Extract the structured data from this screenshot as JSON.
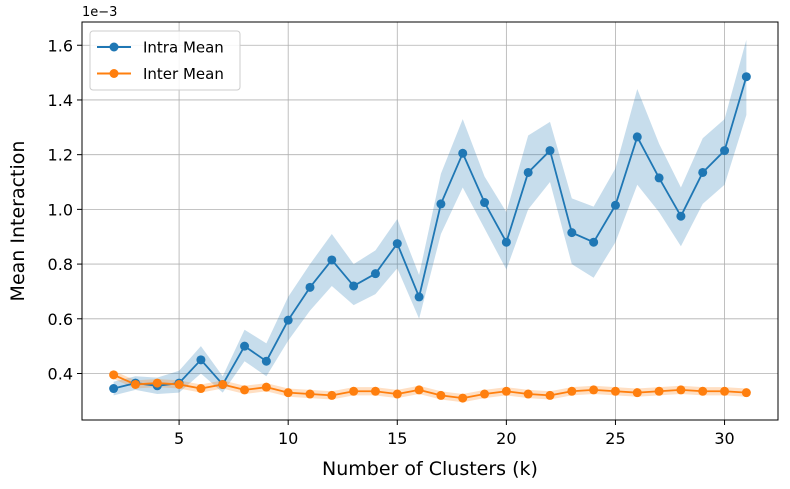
{
  "chart_data": {
    "type": "line",
    "title": "",
    "xlabel": "Number of Clusters (k)",
    "ylabel": "Mean Interaction",
    "y_offset_label": "1e−3",
    "x": [
      2,
      3,
      4,
      5,
      6,
      7,
      8,
      9,
      10,
      11,
      12,
      13,
      14,
      15,
      16,
      17,
      18,
      19,
      20,
      21,
      22,
      23,
      24,
      25,
      26,
      27,
      28,
      29,
      30,
      31
    ],
    "xlim": [
      0.55,
      32.45
    ],
    "ylim": [
      0.23,
      1.685
    ],
    "xticks": [
      5,
      10,
      15,
      20,
      25,
      30
    ],
    "xtick_labels": [
      "5",
      "10",
      "15",
      "20",
      "25",
      "30"
    ],
    "yticks": [
      0.4,
      0.6,
      0.8,
      1.0,
      1.2,
      1.4,
      1.6
    ],
    "ytick_labels": [
      "0.4",
      "0.6",
      "0.8",
      "1.0",
      "1.2",
      "1.4",
      "1.6"
    ],
    "grid": true,
    "legend_position": "top-left",
    "series": [
      {
        "name": "Intra Mean",
        "color": "#1f77b4",
        "band_color": "#a6c6e4",
        "values": [
          0.345,
          0.365,
          0.355,
          0.365,
          0.45,
          0.36,
          0.5,
          0.445,
          0.595,
          0.715,
          0.815,
          0.72,
          0.765,
          0.875,
          0.68,
          1.02,
          1.205,
          1.025,
          0.88,
          1.135,
          1.215,
          0.915,
          0.88,
          1.015,
          1.265,
          1.115,
          0.975,
          1.135,
          1.215,
          1.485
        ],
        "upper": [
          0.37,
          0.39,
          0.385,
          0.41,
          0.5,
          0.39,
          0.56,
          0.51,
          0.68,
          0.8,
          0.91,
          0.8,
          0.85,
          0.965,
          0.76,
          1.13,
          1.33,
          1.12,
          0.99,
          1.27,
          1.32,
          1.04,
          1.01,
          1.15,
          1.44,
          1.24,
          1.08,
          1.26,
          1.33,
          1.62
        ],
        "lower": [
          0.32,
          0.34,
          0.325,
          0.33,
          0.4,
          0.33,
          0.445,
          0.39,
          0.52,
          0.63,
          0.72,
          0.65,
          0.69,
          0.785,
          0.6,
          0.91,
          1.08,
          0.93,
          0.78,
          1.0,
          1.1,
          0.8,
          0.75,
          0.88,
          1.09,
          0.99,
          0.865,
          1.02,
          1.09,
          1.345
        ]
      },
      {
        "name": "Inter Mean",
        "color": "#ff7f0e",
        "band_color": "#fdd0a8",
        "values": [
          0.395,
          0.36,
          0.365,
          0.36,
          0.345,
          0.36,
          0.34,
          0.35,
          0.33,
          0.325,
          0.32,
          0.335,
          0.335,
          0.325,
          0.34,
          0.32,
          0.31,
          0.325,
          0.335,
          0.325,
          0.32,
          0.335,
          0.34,
          0.335,
          0.33,
          0.335,
          0.34,
          0.335,
          0.335,
          0.33
        ],
        "upper": [
          0.41,
          0.375,
          0.38,
          0.375,
          0.36,
          0.375,
          0.355,
          0.365,
          0.345,
          0.34,
          0.335,
          0.35,
          0.35,
          0.34,
          0.355,
          0.335,
          0.325,
          0.34,
          0.35,
          0.34,
          0.335,
          0.35,
          0.355,
          0.35,
          0.345,
          0.35,
          0.355,
          0.35,
          0.35,
          0.345
        ],
        "lower": [
          0.38,
          0.345,
          0.35,
          0.345,
          0.33,
          0.345,
          0.325,
          0.335,
          0.315,
          0.31,
          0.305,
          0.32,
          0.32,
          0.31,
          0.325,
          0.305,
          0.295,
          0.31,
          0.32,
          0.31,
          0.305,
          0.32,
          0.325,
          0.32,
          0.315,
          0.32,
          0.325,
          0.32,
          0.32,
          0.315
        ]
      }
    ]
  }
}
